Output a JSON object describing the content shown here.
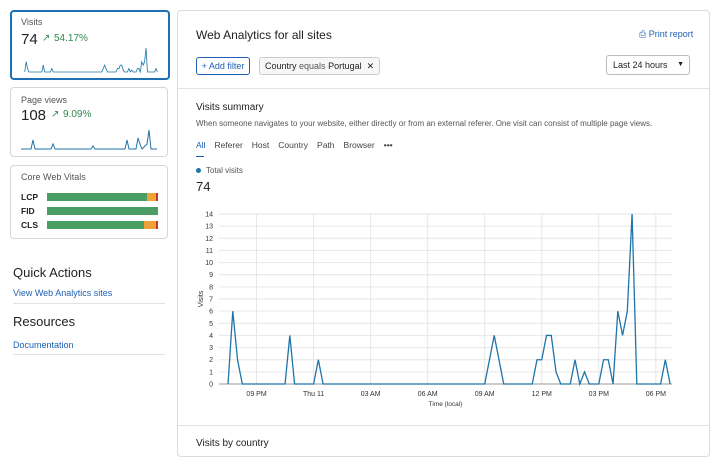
{
  "sidebar": {
    "visits": {
      "label": "Visits",
      "value": "74",
      "change": "54.17%"
    },
    "page_views": {
      "label": "Page views",
      "value": "108",
      "change": "9.09%"
    },
    "core_web_vitals": {
      "title": "Core Web Vitals",
      "metrics": [
        {
          "label": "LCP",
          "good": 90,
          "needs_improvement": 8,
          "poor": 2
        },
        {
          "label": "FID",
          "good": 100,
          "needs_improvement": 0,
          "poor": 0
        },
        {
          "label": "CLS",
          "good": 87,
          "needs_improvement": 11,
          "poor": 2
        }
      ]
    },
    "quick_actions": {
      "title": "Quick Actions",
      "link": "View Web Analytics sites"
    },
    "resources": {
      "title": "Resources",
      "link": "Documentation"
    }
  },
  "header": {
    "title": "Web Analytics for all sites",
    "print": "Print report",
    "add_filter": "Add filter",
    "filter": {
      "field": "Country",
      "op": "equals",
      "value": "Portugal"
    },
    "range": "Last 24 hours"
  },
  "summary": {
    "title": "Visits summary",
    "description": "When someone navigates to your website, either directly or from an external referer. One visit can consist of multiple page views.",
    "tabs": [
      "All",
      "Referer",
      "Host",
      "Country",
      "Path",
      "Browser"
    ],
    "total": "74"
  },
  "next_section": "Visits by country",
  "chart_data": {
    "type": "line",
    "x_label": "Time (local)",
    "y_label": "Visits",
    "x": [
      0,
      1,
      2,
      3,
      4,
      5,
      6,
      7,
      8,
      9,
      10,
      11,
      12,
      13,
      14,
      15,
      16,
      17,
      18,
      19,
      20,
      21,
      22,
      23,
      24,
      25,
      26,
      27,
      28,
      29,
      30,
      31,
      32,
      33,
      34,
      35,
      36,
      37,
      38,
      39,
      40,
      41,
      42,
      43,
      44,
      45,
      46,
      47,
      48,
      49,
      50,
      51,
      52,
      53,
      54,
      55,
      56,
      57,
      58,
      59,
      60,
      61,
      62,
      63,
      64,
      65,
      66,
      67,
      68,
      69,
      70,
      71,
      72,
      73,
      74,
      75,
      76,
      77,
      78,
      79,
      80,
      81,
      82,
      83,
      84,
      85,
      86,
      87,
      88,
      89,
      90,
      91,
      92,
      93
    ],
    "series": [
      {
        "name": "Total visits",
        "color": "#1f74a8",
        "values": [
          0,
          6,
          2,
          0,
          0,
          0,
          0,
          0,
          0,
          0,
          0,
          0,
          0,
          4,
          0,
          0,
          0,
          0,
          0,
          2,
          0,
          0,
          0,
          0,
          0,
          0,
          0,
          0,
          0,
          0,
          0,
          0,
          0,
          0,
          0,
          0,
          0,
          0,
          0,
          0,
          0,
          0,
          0,
          0,
          0,
          0,
          0,
          0,
          0,
          0,
          0,
          0,
          0,
          0,
          0,
          2,
          4,
          2,
          0,
          0,
          0,
          0,
          0,
          0,
          0,
          2,
          2,
          4,
          4,
          1,
          0,
          0,
          0,
          2,
          0,
          1,
          0,
          0,
          0,
          2,
          2,
          0,
          6,
          4,
          6,
          14,
          0,
          0,
          0,
          0,
          0,
          0,
          2,
          0
        ]
      }
    ],
    "xlim": [
      -1.9,
      93.4
    ],
    "ylim": [
      0,
      14
    ],
    "xticks": [
      {
        "value": 6,
        "label": "09 PM"
      },
      {
        "value": 18,
        "label": "Thu 11"
      },
      {
        "value": 30,
        "label": "03 AM"
      },
      {
        "value": 42,
        "label": "06 AM"
      },
      {
        "value": 54,
        "label": "09 AM"
      },
      {
        "value": 66,
        "label": "12 PM"
      },
      {
        "value": 78,
        "label": "03 PM"
      },
      {
        "value": 90,
        "label": "06 PM"
      }
    ],
    "yticks": [
      0,
      1,
      2,
      3,
      4,
      5,
      6,
      7,
      8,
      9,
      10,
      11,
      12,
      13,
      14
    ],
    "grid": true
  }
}
